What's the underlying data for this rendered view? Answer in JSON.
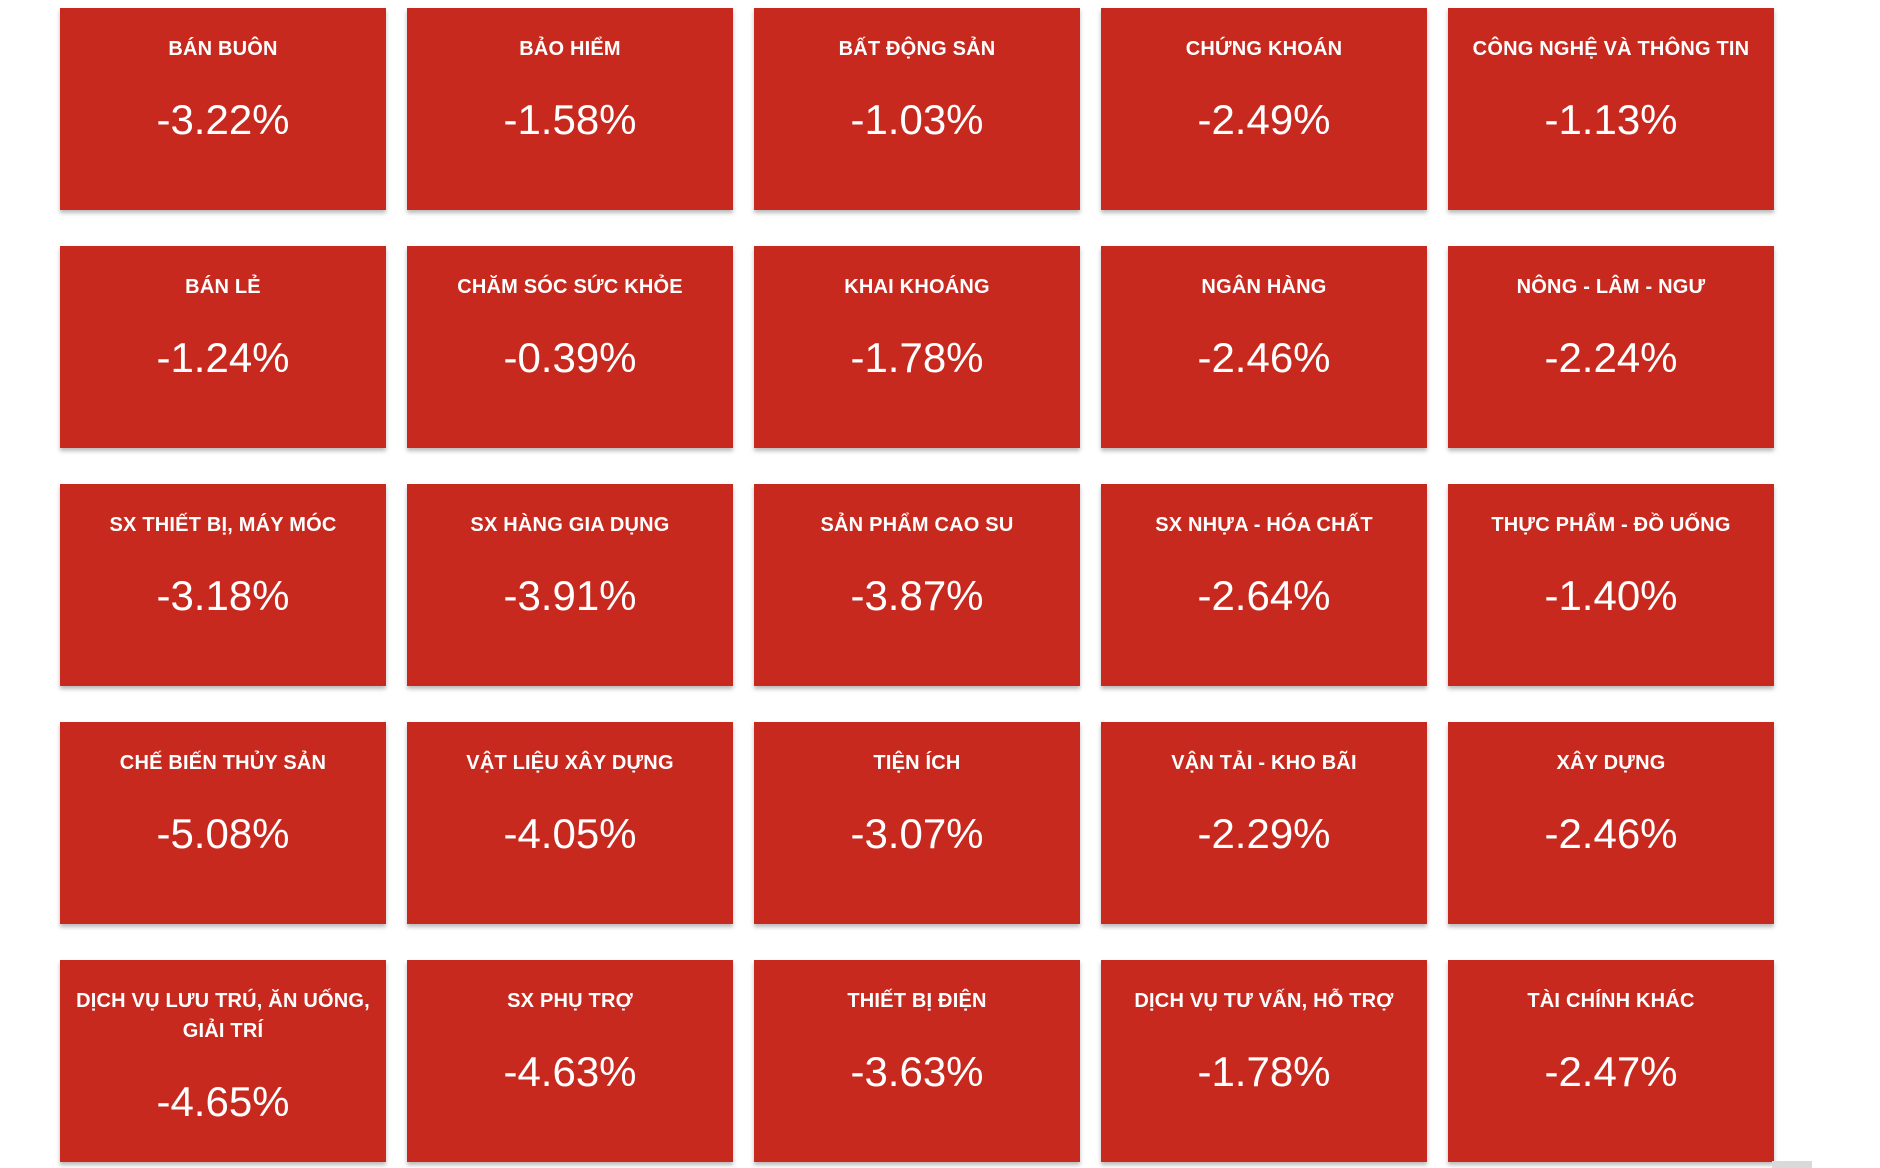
{
  "colors": {
    "tile_bg": "#c8291e",
    "tile_text": "#ffffff",
    "page_bg": "#ffffff",
    "scrollbar": "#d9d9d9"
  },
  "tiles": [
    {
      "label": "BÁN BUÔN",
      "change": "-3.22%"
    },
    {
      "label": "BẢO HIỂM",
      "change": "-1.58%"
    },
    {
      "label": "BẤT ĐỘNG SẢN",
      "change": "-1.03%"
    },
    {
      "label": "CHỨNG KHOÁN",
      "change": "-2.49%"
    },
    {
      "label": "CÔNG NGHỆ VÀ THÔNG TIN",
      "change": "-1.13%"
    },
    {
      "label": "BÁN LẺ",
      "change": "-1.24%"
    },
    {
      "label": "CHĂM SÓC SỨC KHỎE",
      "change": "-0.39%"
    },
    {
      "label": "KHAI KHOÁNG",
      "change": "-1.78%"
    },
    {
      "label": "NGÂN HÀNG",
      "change": "-2.46%"
    },
    {
      "label": "NÔNG - LÂM - NGƯ",
      "change": "-2.24%"
    },
    {
      "label": "SX THIẾT BỊ, MÁY MÓC",
      "change": "-3.18%"
    },
    {
      "label": "SX HÀNG GIA DỤNG",
      "change": "-3.91%"
    },
    {
      "label": "SẢN PHẨM CAO SU",
      "change": "-3.87%"
    },
    {
      "label": "SX NHỰA - HÓA CHẤT",
      "change": "-2.64%"
    },
    {
      "label": "THỰC PHẨM - ĐỒ UỐNG",
      "change": "-1.40%"
    },
    {
      "label": "CHẾ BIẾN THỦY SẢN",
      "change": "-5.08%"
    },
    {
      "label": "VẬT LIỆU XÂY DỰNG",
      "change": "-4.05%"
    },
    {
      "label": "TIỆN ÍCH",
      "change": "-3.07%"
    },
    {
      "label": "VẬN TẢI - KHO BÃI",
      "change": "-2.29%"
    },
    {
      "label": "XÂY DỰNG",
      "change": "-2.46%"
    },
    {
      "label": "DỊCH VỤ LƯU TRÚ, ĂN UỐNG, GIẢI TRÍ",
      "change": "-4.65%"
    },
    {
      "label": "SX PHỤ TRỢ",
      "change": "-4.63%"
    },
    {
      "label": "THIẾT BỊ ĐIỆN",
      "change": "-3.63%"
    },
    {
      "label": "DỊCH VỤ TƯ VẤN, HỖ TRỢ",
      "change": "-1.78%"
    },
    {
      "label": "TÀI CHÍNH KHÁC",
      "change": "-2.47%"
    }
  ],
  "chart_data": {
    "type": "heatmap",
    "unit": "%",
    "layout": {
      "columns": 5,
      "rows": 5,
      "tile_color": "#c8291e",
      "text_color": "#ffffff"
    },
    "categories": [
      "BÁN BUÔN",
      "BẢO HIỂM",
      "BẤT ĐỘNG SẢN",
      "CHỨNG KHOÁN",
      "CÔNG NGHỆ VÀ THÔNG TIN",
      "BÁN LẺ",
      "CHĂM SÓC SỨC KHỎE",
      "KHAI KHOÁNG",
      "NGÂN HÀNG",
      "NÔNG - LÂM - NGƯ",
      "SX THIẾT BỊ, MÁY MÓC",
      "SX HÀNG GIA DỤNG",
      "SẢN PHẨM CAO SU",
      "SX NHỰA - HÓA CHẤT",
      "THỰC PHẨM - ĐỒ UỐNG",
      "CHẾ BIẾN THỦY SẢN",
      "VẬT LIỆU XÂY DỰNG",
      "TIỆN ÍCH",
      "VẬN TẢI - KHO BÃI",
      "XÂY DỰNG",
      "DỊCH VỤ LƯU TRÚ, ĂN UỐNG, GIẢI TRÍ",
      "SX PHỤ TRỢ",
      "THIẾT BỊ ĐIỆN",
      "DỊCH VỤ TƯ VẤN, HỖ TRỢ",
      "TÀI CHÍNH KHÁC"
    ],
    "values": [
      -3.22,
      -1.58,
      -1.03,
      -2.49,
      -1.13,
      -1.24,
      -0.39,
      -1.78,
      -2.46,
      -2.24,
      -3.18,
      -3.91,
      -3.87,
      -2.64,
      -1.4,
      -5.08,
      -4.05,
      -3.07,
      -2.29,
      -2.46,
      -4.65,
      -4.63,
      -3.63,
      -1.78,
      -2.47
    ]
  }
}
